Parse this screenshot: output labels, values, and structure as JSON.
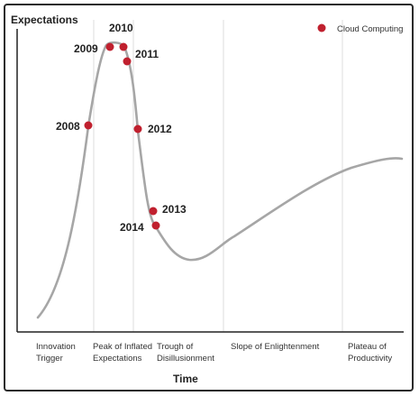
{
  "y_axis_title": "Expectations",
  "x_axis_title": "Time",
  "legend": {
    "label": "Cloud Computing",
    "marker_color": "#c0202e"
  },
  "curve_color": "#a6a6a6",
  "years": [
    "2008",
    "2009",
    "2010",
    "2011",
    "2012",
    "2013",
    "2014"
  ],
  "phases": [
    {
      "line1": "Innovation",
      "line2": "Trigger"
    },
    {
      "line1": "Peak of Inflated",
      "line2": "Expectations"
    },
    {
      "line1": "Trough of",
      "line2": "Disillusionment"
    },
    {
      "line1": "Slope of Enlightenment",
      "line2": ""
    },
    {
      "line1": "Plateau of",
      "line2": "Productivity"
    }
  ]
}
